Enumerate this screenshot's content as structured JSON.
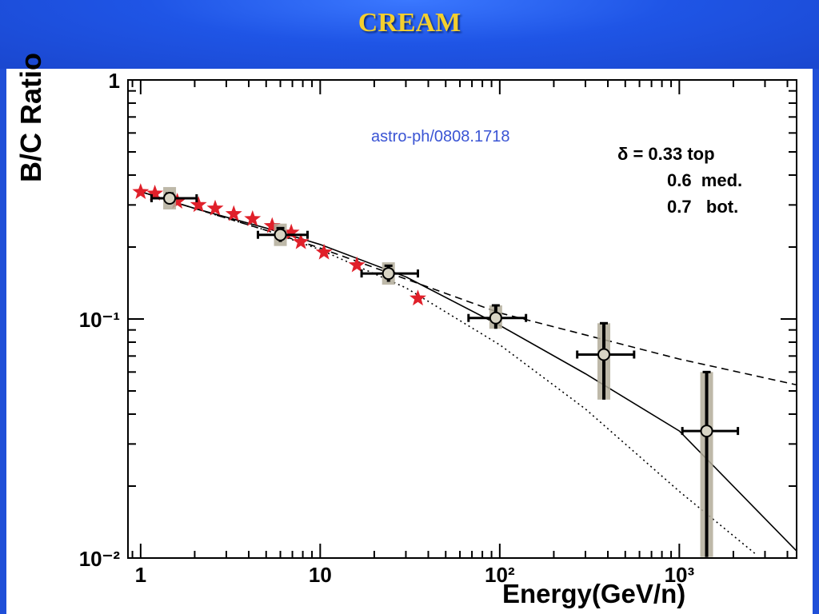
{
  "slide": {
    "title": "CREAM"
  },
  "annotations": {
    "source": "astro-ph/0808.1718",
    "delta_symbol": "δ",
    "delta_rows": [
      "= 0.33 top",
      "0.6  med.",
      "0.7   bot."
    ]
  },
  "chart_data": {
    "type": "scatter",
    "xlabel": "Energy(GeV/n)",
    "ylabel": "B/C Ratio",
    "xscale": "log",
    "yscale": "log",
    "xlim": [
      0.85,
      4500
    ],
    "ylim": [
      0.01,
      1
    ],
    "x_tick_labels": [
      "1",
      "10",
      "10²",
      "10³"
    ],
    "y_tick_labels": [
      "1",
      "10⁻¹",
      "10⁻²"
    ],
    "grid": false,
    "series": [
      {
        "marker": "star",
        "color": "#e0202a",
        "points": [
          [
            1.0,
            0.34
          ],
          [
            1.2,
            0.335
          ],
          [
            1.6,
            0.31
          ],
          [
            2.1,
            0.3
          ],
          [
            2.6,
            0.29
          ],
          [
            3.3,
            0.275
          ],
          [
            4.2,
            0.262
          ],
          [
            5.4,
            0.245
          ],
          [
            6.9,
            0.23
          ],
          [
            7.8,
            0.21
          ],
          [
            10.5,
            0.19
          ],
          [
            16,
            0.168
          ],
          [
            35,
            0.122
          ]
        ]
      },
      {
        "marker": "circle",
        "color": "#000000",
        "points": [
          {
            "x": 1.45,
            "y": 0.32,
            "xerr": [
              0.3,
              0.6
            ],
            "yerr": [
              0.015,
              0.015
            ]
          },
          {
            "x": 6.0,
            "y": 0.225,
            "xerr": [
              1.5,
              2.5
            ],
            "yerr": [
              0.015,
              0.015
            ]
          },
          {
            "x": 24,
            "y": 0.155,
            "xerr": [
              7,
              11
            ],
            "yerr": [
              0.012,
              0.012
            ]
          },
          {
            "x": 95,
            "y": 0.101,
            "xerr": [
              28,
              45
            ],
            "yerr": [
              0.01,
              0.013
            ]
          },
          {
            "x": 380,
            "y": 0.071,
            "xerr": [
              110,
              180
            ],
            "yerr": [
              0.025,
              0.025
            ]
          },
          {
            "x": 1420,
            "y": 0.034,
            "xerr": [
              380,
              700
            ],
            "yerr": [
              0.024,
              0.026
            ]
          }
        ]
      },
      {
        "line": "dashed",
        "color": "#000000",
        "delta": 0.33,
        "points": [
          [
            0.95,
            0.345
          ],
          [
            2,
            0.29
          ],
          [
            5,
            0.235
          ],
          [
            10,
            0.198
          ],
          [
            100,
            0.106
          ],
          [
            1000,
            0.068
          ],
          [
            4500,
            0.053
          ]
        ]
      },
      {
        "line": "solid",
        "color": "#000000",
        "delta": 0.6,
        "points": [
          [
            0.95,
            0.345
          ],
          [
            2,
            0.29
          ],
          [
            5,
            0.24
          ],
          [
            10,
            0.205
          ],
          [
            30,
            0.15
          ],
          [
            100,
            0.094
          ],
          [
            300,
            0.059
          ],
          [
            1000,
            0.034
          ],
          [
            4500,
            0.0107
          ]
        ]
      },
      {
        "line": "dotted",
        "color": "#000000",
        "delta": 0.7,
        "points": [
          [
            0.95,
            0.345
          ],
          [
            2,
            0.29
          ],
          [
            5,
            0.235
          ],
          [
            10,
            0.195
          ],
          [
            30,
            0.135
          ],
          [
            100,
            0.078
          ],
          [
            300,
            0.042
          ],
          [
            1000,
            0.019
          ],
          [
            2700,
            0.0103
          ]
        ]
      }
    ]
  }
}
